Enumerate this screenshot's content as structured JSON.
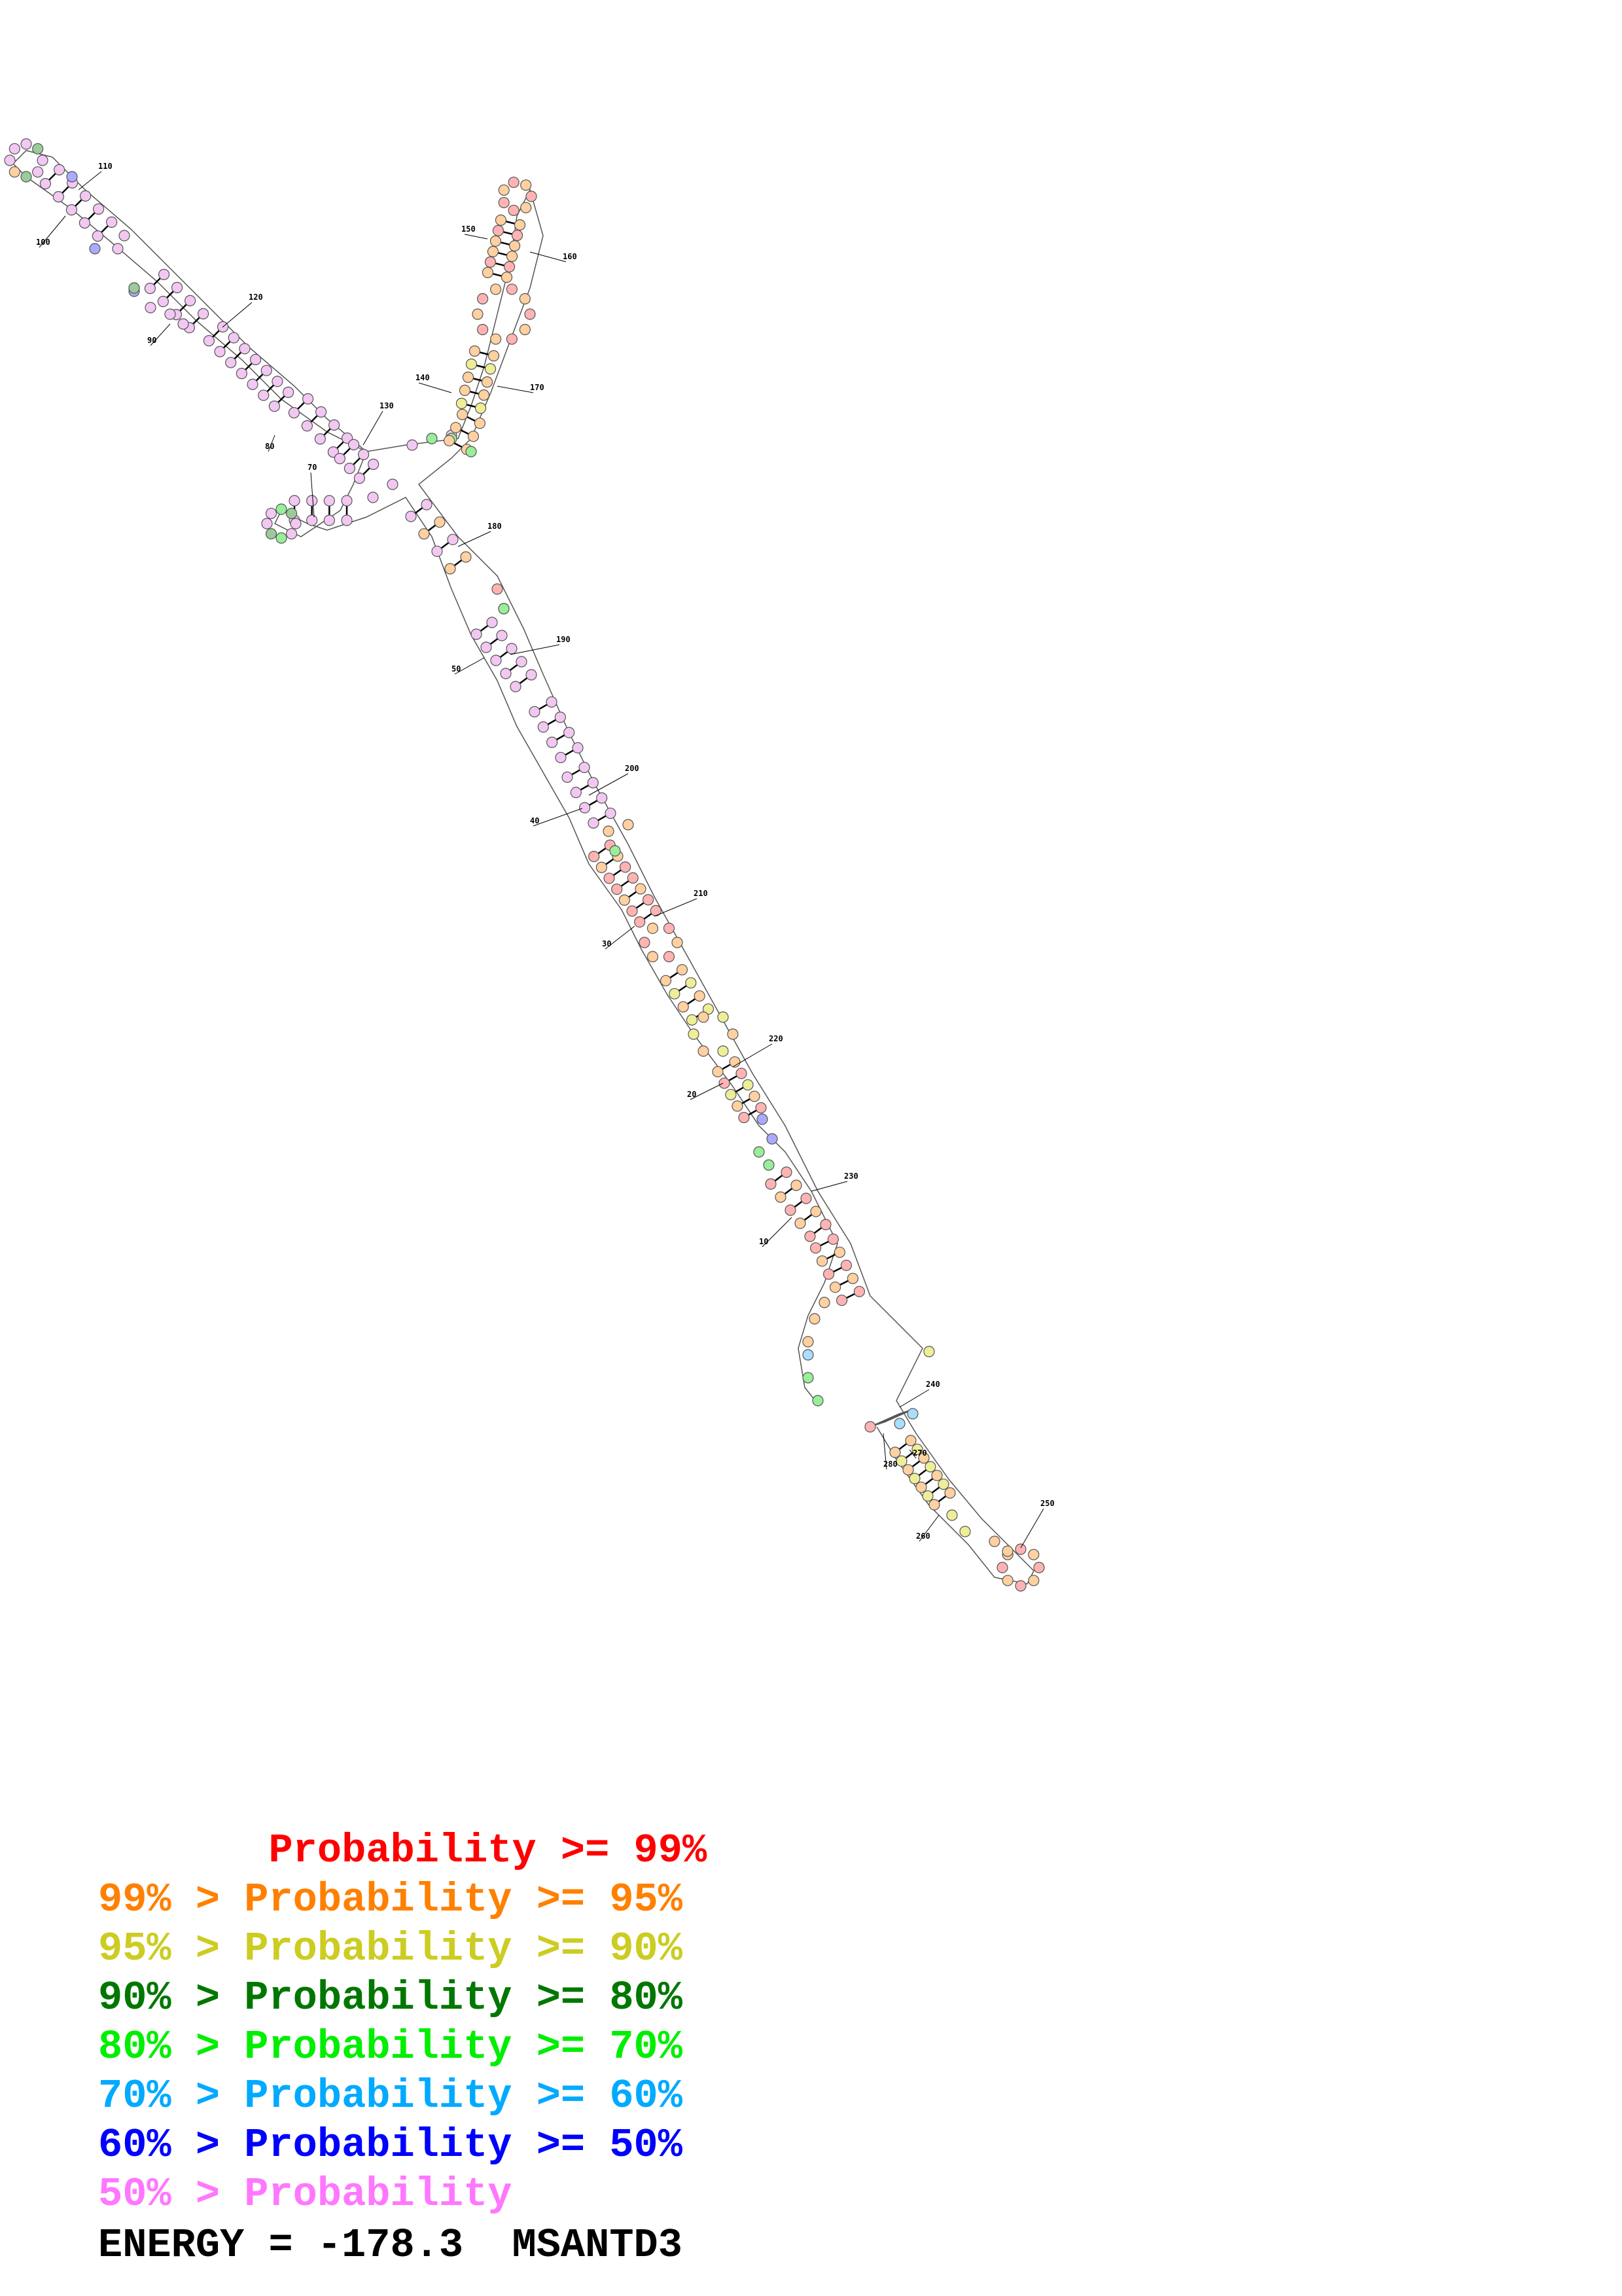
{
  "legend": [
    {
      "prefix": "       ",
      "text": "Probability >= 99%",
      "color": "#ff0000"
    },
    {
      "prefix": "99% > ",
      "text": "Probability >= 95%",
      "color": "#ff8000"
    },
    {
      "prefix": "95% > ",
      "text": "Probability >= 90%",
      "color": "#cccc22"
    },
    {
      "prefix": "90% > ",
      "text": "Probability >= 80%",
      "color": "#007700"
    },
    {
      "prefix": "80% > ",
      "text": "Probability >= 70%",
      "color": "#00ee00"
    },
    {
      "prefix": "70% > ",
      "text": "Probability >= 60%",
      "color": "#00aaff"
    },
    {
      "prefix": "60% > ",
      "text": "Probability >= 50%",
      "color": "#0000ff"
    },
    {
      "prefix": "50% > ",
      "text": "Probability",
      "color": "#ff77ff"
    }
  ],
  "footer": {
    "energy_label": "ENERGY = -178.3",
    "name": "MSANTD3"
  },
  "position_labels": [
    "110",
    "100",
    "120",
    "90",
    "130",
    "80",
    "70",
    "140",
    "150",
    "160",
    "170",
    "180",
    "190",
    "50",
    "200",
    "40",
    "210",
    "30",
    "220",
    "20",
    "230",
    "10",
    "240",
    "270",
    "280",
    "250",
    "260"
  ],
  "fill_colors": {
    "red": "#ffb3b3",
    "orange": "#ffd0a0",
    "yellow": "#eeee99",
    "darkgreen": "#99cc99",
    "green": "#99ee99",
    "lightblue": "#aaddff",
    "blue": "#aaaaff",
    "pink": "#f2c8f2"
  }
}
